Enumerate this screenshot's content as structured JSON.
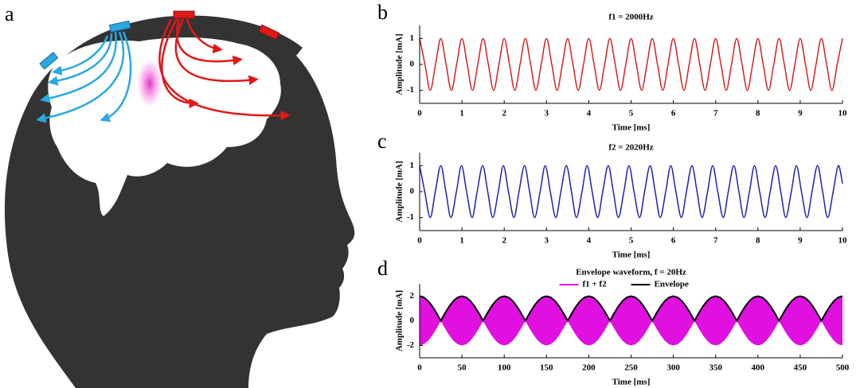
{
  "panel_labels": [
    "a",
    "b",
    "c",
    "d"
  ],
  "chart_data": [
    {
      "type": "line",
      "title": "f1 = 2000Hz",
      "xlabel": "Time [ms]",
      "ylabel": "Amplitude [mA]",
      "color": "#d42020",
      "x": [
        0,
        0.125,
        0.25,
        0.375,
        0.5,
        0.625,
        0.75,
        0.875,
        1,
        1.125,
        1.25,
        1.375,
        1.5,
        1.625,
        1.75,
        1.875,
        2,
        2.125,
        2.25,
        2.375,
        2.5,
        2.625,
        2.75,
        2.875,
        3,
        3.125,
        3.25,
        3.375,
        3.5,
        3.625,
        3.75,
        3.875,
        4,
        4.125,
        4.25,
        4.375,
        4.5,
        4.625,
        4.75,
        4.875,
        5,
        5.125,
        5.25,
        5.375,
        5.5,
        5.625,
        5.75,
        5.875,
        6,
        6.125,
        6.25,
        6.375,
        6.5,
        6.625,
        6.75,
        6.875,
        7,
        7.125,
        7.25,
        7.375,
        7.5,
        7.625,
        7.75,
        7.875,
        8,
        8.125,
        8.25,
        8.375,
        8.5,
        8.625,
        8.75,
        8.875,
        9,
        9.125,
        9.25,
        9.375,
        9.5,
        9.625,
        9.75,
        9.875,
        10
      ],
      "values": [
        1,
        0,
        -1,
        0,
        1,
        0,
        -1,
        0,
        1,
        0,
        -1,
        0,
        1,
        0,
        -1,
        0,
        1,
        0,
        -1,
        0,
        1,
        0,
        -1,
        0,
        1,
        0,
        -1,
        0,
        1,
        0,
        -1,
        0,
        1,
        0,
        -1,
        0,
        1,
        0,
        -1,
        0,
        1,
        0,
        -1,
        0,
        1,
        0,
        -1,
        0,
        1,
        0,
        -1,
        0,
        1,
        0,
        -1,
        0,
        1,
        0,
        -1,
        0,
        1,
        0,
        -1,
        0,
        1,
        0,
        -1,
        0,
        1,
        0,
        -1,
        0,
        1,
        0,
        -1,
        0,
        1,
        0,
        -1,
        0,
        1
      ],
      "xlim": [
        0,
        10
      ],
      "xticks": [
        0,
        1,
        2,
        3,
        4,
        5,
        6,
        7,
        8,
        9,
        10
      ],
      "ylim": [
        -1.5,
        1.5
      ],
      "yticks": [
        -1,
        0,
        1
      ]
    },
    {
      "type": "line",
      "title": "f2 = 2020Hz",
      "xlabel": "Time [ms]",
      "ylabel": "Amplitude [mA]",
      "color": "#2020b0",
      "x": [
        0,
        0.12,
        0.25,
        0.37,
        0.5,
        0.62,
        0.74,
        0.87,
        0.99,
        1.11,
        1.24,
        1.36,
        1.49,
        1.61,
        1.73,
        1.86,
        1.98,
        2.1,
        2.23,
        2.35,
        2.48,
        2.6,
        2.72,
        2.85,
        2.97,
        3.09,
        3.22,
        3.34,
        3.47,
        3.59,
        3.71,
        3.84,
        3.96,
        4.08,
        4.21,
        4.33,
        4.46,
        4.58,
        4.7,
        4.83,
        4.95,
        5.07,
        5.2,
        5.32,
        5.45,
        5.57,
        5.69,
        5.82,
        5.94,
        6.06,
        6.19,
        6.31,
        6.44,
        6.56,
        6.68,
        6.81,
        6.93,
        7.05,
        7.18,
        7.3,
        7.43,
        7.55,
        7.67,
        7.8,
        7.92,
        8.04,
        8.17,
        8.29,
        8.42,
        8.54,
        8.66,
        8.79,
        8.91,
        9.03,
        9.16,
        9.28,
        9.41,
        9.53,
        9.65,
        9.78,
        9.9,
        10
      ],
      "values": [
        1,
        0,
        -1,
        0,
        1,
        0,
        -1,
        0,
        1,
        0,
        -1,
        0,
        1,
        0,
        -1,
        0,
        1,
        0,
        -1,
        0,
        1,
        0,
        -1,
        0,
        1,
        0,
        -1,
        0,
        1,
        0,
        -1,
        0,
        1,
        0,
        -1,
        0,
        1,
        0,
        -1,
        0,
        1,
        0,
        -1,
        0,
        1,
        0,
        -1,
        0,
        1,
        0,
        -1,
        0,
        1,
        0,
        -1,
        0,
        1,
        0,
        -1,
        0,
        1,
        0,
        -1,
        0,
        1,
        0,
        -1,
        0,
        1,
        0,
        -1,
        0,
        1,
        0,
        -1,
        0,
        1,
        0,
        -1,
        0,
        1,
        0.31
      ],
      "xlim": [
        0,
        10
      ],
      "xticks": [
        0,
        1,
        2,
        3,
        4,
        5,
        6,
        7,
        8,
        9,
        10
      ],
      "ylim": [
        -1.5,
        1.5
      ],
      "yticks": [
        -1,
        0,
        1
      ]
    },
    {
      "type": "area",
      "title": "Envelope waveform, f = 20Hz",
      "xlabel": "Time [ms]",
      "ylabel": "Amplitude [mA]",
      "legend": "top",
      "x": [
        0,
        5,
        10,
        15,
        20,
        25,
        30,
        35,
        40,
        45,
        50,
        55,
        60,
        65,
        70,
        75,
        80,
        85,
        90,
        95,
        100,
        105,
        110,
        115,
        120,
        125,
        130,
        135,
        140,
        145,
        150,
        155,
        160,
        165,
        170,
        175,
        180,
        185,
        190,
        195,
        200,
        205,
        210,
        215,
        220,
        225,
        230,
        235,
        240,
        245,
        250,
        255,
        260,
        265,
        270,
        275,
        280,
        285,
        290,
        295,
        300,
        305,
        310,
        315,
        320,
        325,
        330,
        335,
        340,
        345,
        350,
        355,
        360,
        365,
        370,
        375,
        380,
        385,
        390,
        395,
        400,
        405,
        410,
        415,
        420,
        425,
        430,
        435,
        440,
        445,
        450,
        455,
        460,
        465,
        470,
        475,
        480,
        485,
        490,
        495,
        500
      ],
      "series": [
        {
          "name": "f1 + f2",
          "color": "#e010e0",
          "values": [
            2,
            1.902,
            1.618,
            1.176,
            0.618,
            0,
            0.618,
            1.176,
            1.618,
            1.902,
            2,
            1.902,
            1.618,
            1.176,
            0.618,
            0,
            0.618,
            1.176,
            1.618,
            1.902,
            2,
            1.902,
            1.618,
            1.176,
            0.618,
            0,
            0.618,
            1.176,
            1.618,
            1.902,
            2,
            1.902,
            1.618,
            1.176,
            0.618,
            0,
            0.618,
            1.176,
            1.618,
            1.902,
            2,
            1.902,
            1.618,
            1.176,
            0.618,
            0,
            0.618,
            1.176,
            1.618,
            1.902,
            2,
            1.902,
            1.618,
            1.176,
            0.618,
            0,
            0.618,
            1.176,
            1.618,
            1.902,
            2,
            1.902,
            1.618,
            1.176,
            0.618,
            0,
            0.618,
            1.176,
            1.618,
            1.902,
            2,
            1.902,
            1.618,
            1.176,
            0.618,
            0,
            0.618,
            1.176,
            1.618,
            1.902,
            2,
            1.902,
            1.618,
            1.176,
            0.618,
            0,
            0.618,
            1.176,
            1.618,
            1.902,
            2,
            1.902,
            1.618,
            1.176,
            0.618,
            0,
            0.618,
            1.176,
            1.618,
            1.902,
            2
          ],
          "lower": [
            -2,
            -1.902,
            -1.618,
            -1.176,
            -0.618,
            0,
            -0.618,
            -1.176,
            -1.618,
            -1.902,
            -2,
            -1.902,
            -1.618,
            -1.176,
            -0.618,
            0,
            -0.618,
            -1.176,
            -1.618,
            -1.902,
            -2,
            -1.902,
            -1.618,
            -1.176,
            -0.618,
            0,
            -0.618,
            -1.176,
            -1.618,
            -1.902,
            -2,
            -1.902,
            -1.618,
            -1.176,
            -0.618,
            0,
            -0.618,
            -1.176,
            -1.618,
            -1.902,
            -2,
            -1.902,
            -1.618,
            -1.176,
            -0.618,
            0,
            -0.618,
            -1.176,
            -1.618,
            -1.902,
            -2,
            -1.902,
            -1.618,
            -1.176,
            -0.618,
            0,
            -0.618,
            -1.176,
            -1.618,
            -1.902,
            -2,
            -1.902,
            -1.618,
            -1.176,
            -0.618,
            0,
            -0.618,
            -1.176,
            -1.618,
            -1.902,
            -2,
            -1.902,
            -1.618,
            -1.176,
            -0.618,
            0,
            -0.618,
            -1.176,
            -1.618,
            -1.902,
            -2,
            -1.902,
            -1.618,
            -1.176,
            -0.618,
            0,
            -0.618,
            -1.176,
            -1.618,
            -1.902,
            -2,
            -1.902,
            -1.618,
            -1.176,
            -0.618,
            0,
            -0.618,
            -1.176,
            -1.618,
            -1.902,
            -2
          ]
        },
        {
          "name": "Envelope",
          "color": "#000000",
          "values": [
            2,
            1.902,
            1.618,
            1.176,
            0.618,
            0,
            0.618,
            1.176,
            1.618,
            1.902,
            2,
            1.902,
            1.618,
            1.176,
            0.618,
            0,
            0.618,
            1.176,
            1.618,
            1.902,
            2,
            1.902,
            1.618,
            1.176,
            0.618,
            0,
            0.618,
            1.176,
            1.618,
            1.902,
            2,
            1.902,
            1.618,
            1.176,
            0.618,
            0,
            0.618,
            1.176,
            1.618,
            1.902,
            2,
            1.902,
            1.618,
            1.176,
            0.618,
            0,
            0.618,
            1.176,
            1.618,
            1.902,
            2,
            1.902,
            1.618,
            1.176,
            0.618,
            0,
            0.618,
            1.176,
            1.618,
            1.902,
            2,
            1.902,
            1.618,
            1.176,
            0.618,
            0,
            0.618,
            1.176,
            1.618,
            1.902,
            2,
            1.902,
            1.618,
            1.176,
            0.618,
            0,
            0.618,
            1.176,
            1.618,
            1.902,
            2,
            1.902,
            1.618,
            1.176,
            0.618,
            0,
            0.618,
            1.176,
            1.618,
            1.902,
            2,
            1.902,
            1.618,
            1.176,
            0.618,
            0,
            0.618,
            1.176,
            1.618,
            1.902,
            2
          ]
        }
      ],
      "xlim": [
        0,
        500
      ],
      "xticks": [
        0,
        50,
        100,
        150,
        200,
        250,
        300,
        350,
        400,
        450,
        500
      ],
      "ylim": [
        -3,
        3
      ],
      "yticks": [
        -2,
        0,
        2
      ]
    }
  ]
}
